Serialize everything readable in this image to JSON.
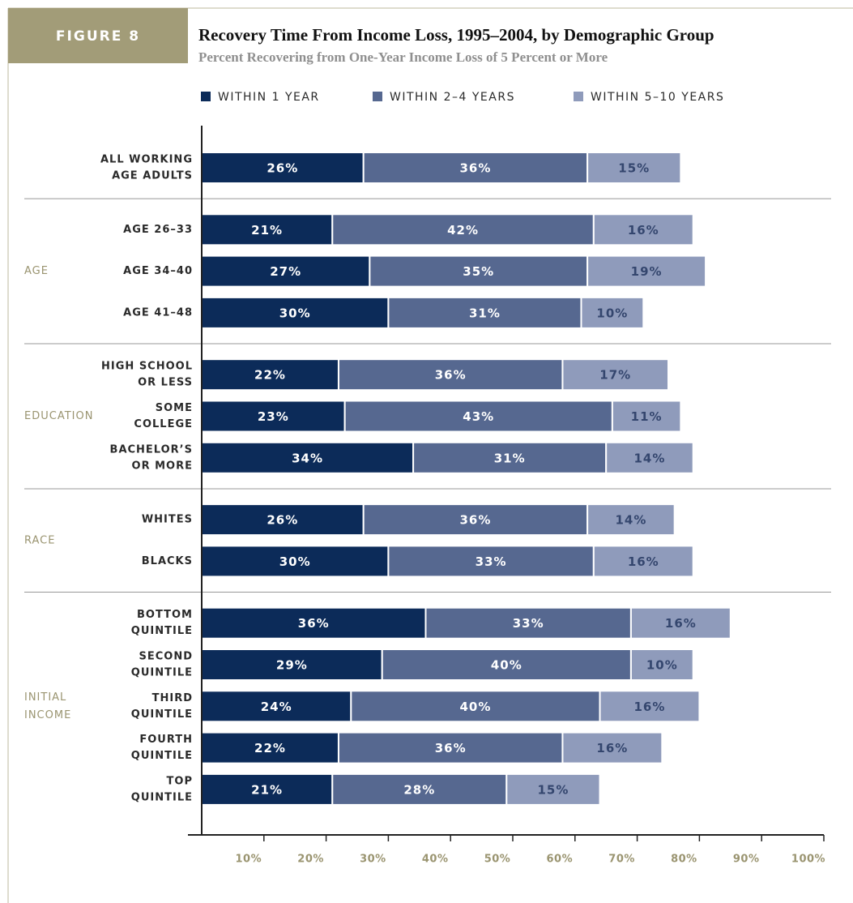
{
  "chart_data": {
    "type": "stacked_barh",
    "figure_label": "FIGURE 8",
    "title": "Recovery Time From Income Loss, 1995–2004, by Demographic Group",
    "subtitle": "Percent Recovering from One-Year Income Loss of 5 Percent or More",
    "categories": [
      [
        "ALL WORKING",
        "AGE ADULTS"
      ],
      [
        "AGE 26–33"
      ],
      [
        "AGE 34–40"
      ],
      [
        "AGE 41–48"
      ],
      [
        "HIGH SCHOOL",
        "OR LESS"
      ],
      [
        "SOME",
        "COLLEGE"
      ],
      [
        "BACHELOR’S",
        "OR MORE"
      ],
      [
        "WHITES"
      ],
      [
        "BLACKS"
      ],
      [
        "BOTTOM",
        "QUINTILE"
      ],
      [
        "SECOND",
        "QUINTILE"
      ],
      [
        "THIRD",
        "QUINTILE"
      ],
      [
        "FOURTH",
        "QUINTILE"
      ],
      [
        "TOP",
        "QUINTILE"
      ]
    ],
    "groups": [
      {
        "label": [],
        "count": 1
      },
      {
        "label": [
          "AGE"
        ],
        "count": 3
      },
      {
        "label": [
          "EDUCATION"
        ],
        "count": 3
      },
      {
        "label": [
          "RACE"
        ],
        "count": 2
      },
      {
        "label": [
          "INITIAL",
          "INCOME"
        ],
        "count": 5
      }
    ],
    "series": [
      {
        "name": "WITHIN 1 YEAR",
        "color": "#0c2b59",
        "values": [
          26,
          21,
          27,
          30,
          22,
          23,
          34,
          26,
          30,
          36,
          29,
          24,
          22,
          21
        ],
        "value_labels": [
          "26%",
          "21%",
          "27%",
          "30%",
          "22%",
          "23%",
          "34%",
          "26%",
          "30%",
          "36%",
          "29%",
          "24%",
          "22%",
          "21%"
        ]
      },
      {
        "name": "WITHIN 2–4 YEARS",
        "color": "#566890",
        "values": [
          36,
          42,
          35,
          31,
          36,
          43,
          31,
          36,
          33,
          33,
          40,
          40,
          36,
          28
        ],
        "value_labels": [
          "36%",
          "42%",
          "35%",
          "31%",
          "36%",
          "43%",
          "31%",
          "36%",
          "33%",
          "33%",
          "40%",
          "40%",
          "36%",
          "28%"
        ]
      },
      {
        "name": "WITHIN 5–10 YEARS",
        "color": "#8f9bbb",
        "values": [
          15,
          16,
          19,
          10,
          17,
          11,
          14,
          14,
          16,
          16,
          10,
          16,
          16,
          15
        ],
        "value_labels": [
          "15%",
          "16%",
          "19%",
          "10%",
          "17%",
          "11%",
          "14%",
          "14%",
          "16%",
          "16%",
          "10%",
          "16%",
          "16%",
          "15%"
        ]
      }
    ],
    "xlim": [
      0,
      100
    ],
    "xticks": [
      {
        "value": 10,
        "label": "10%"
      },
      {
        "value": 20,
        "label": "20%"
      },
      {
        "value": 30,
        "label": "30%"
      },
      {
        "value": 40,
        "label": "40%"
      },
      {
        "value": 50,
        "label": "50%"
      },
      {
        "value": 60,
        "label": "60%"
      },
      {
        "value": 70,
        "label": "70%"
      },
      {
        "value": 80,
        "label": "80%"
      },
      {
        "value": 90,
        "label": "90%"
      },
      {
        "value": 100,
        "label": "100%"
      }
    ]
  }
}
